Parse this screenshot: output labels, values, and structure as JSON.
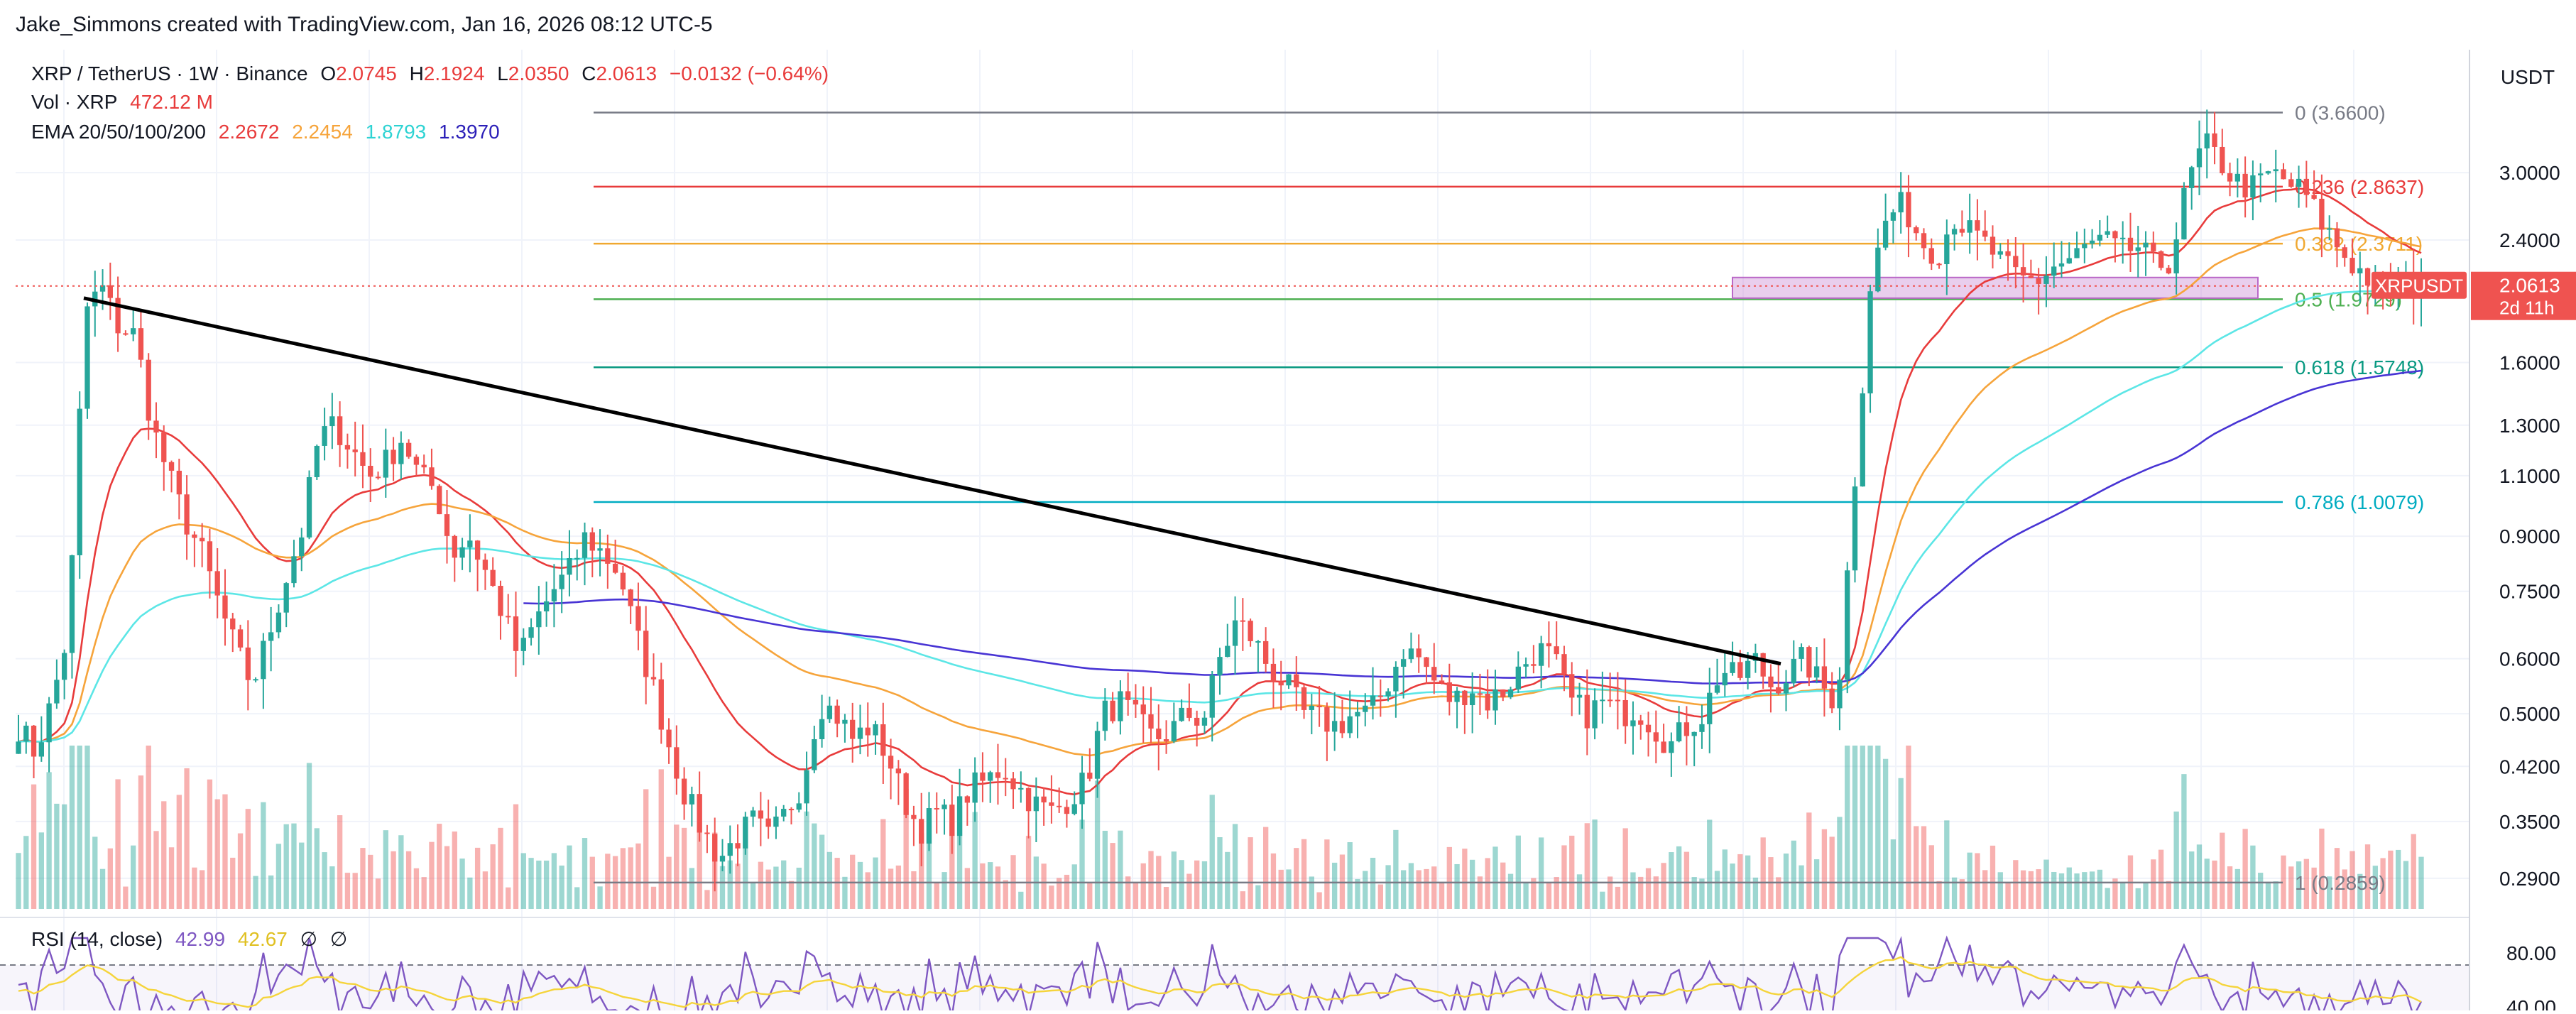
{
  "header": {
    "credit": "Jake_Simmons created with TradingView.com, Jan 16, 2026 08:12 UTC-5",
    "symbol_line": {
      "symbol": "XRP / TetherUS · 1W · Binance",
      "o_label": "O",
      "o": "2.0745",
      "h_label": "H",
      "h": "2.1924",
      "l_label": "L",
      "l": "2.0350",
      "c_label": "C",
      "c": "2.0613",
      "change": "−0.0132 (−0.64%)"
    },
    "volume_line": {
      "label": "Vol · XRP",
      "value": "472.12 M"
    },
    "ema_line": {
      "label": "EMA 20/50/100/200",
      "values": [
        "2.2672",
        "2.2454",
        "1.8793",
        "1.3970"
      ]
    }
  },
  "colors": {
    "up": "#26a69a",
    "down": "#ef5350",
    "ema20": "#e83b3b",
    "ema50": "#f6a43b",
    "ema100": "#5ce6e6",
    "ema200": "#4834d4",
    "rsi": "#7e57c2",
    "rsi_ma": "#f5d43b",
    "trendline": "#000000"
  },
  "price_axis": {
    "currency": "USDT",
    "ticks": [
      "3.0000",
      "2.4000",
      "1.6000",
      "1.3000",
      "1.1000",
      "0.9000",
      "0.7500",
      "0.6000",
      "0.5000",
      "0.4200",
      "0.3500",
      "0.2900"
    ],
    "last_price_tag": {
      "symbol": "XRPUSDT",
      "price": "2.0613",
      "countdown": "2d 11h"
    }
  },
  "rsi_axis": {
    "ticks": [
      "80.00",
      "40.00"
    ]
  },
  "rsi_legend": {
    "label": "RSI (14, close)",
    "rsi": "42.99",
    "ma": "42.67",
    "sym1": "∅",
    "sym2": "∅"
  },
  "chart_data": {
    "type": "candlestick",
    "symbol": "XRP / TetherUS",
    "interval": "1W",
    "exchange": "Binance",
    "y_scale": "log",
    "ylim": [
      0.27,
      3.9
    ],
    "fibonacci": [
      {
        "level": "0",
        "price": 3.66,
        "label": "0 (3.6600)",
        "color": "#787b86"
      },
      {
        "level": "0.236",
        "price": 2.8637,
        "label": "0.236 (2.8637)",
        "color": "#e83b3b"
      },
      {
        "level": "0.382",
        "price": 2.3711,
        "label": "0.382 (2.3711)",
        "color": "#f0a830"
      },
      {
        "level": "0.5",
        "price": 1.9729,
        "label": "0.5 (1.9729)",
        "color": "#4caf50"
      },
      {
        "level": "0.618",
        "price": 1.5748,
        "label": "0.618 (1.5748)",
        "color": "#089981"
      },
      {
        "level": "0.786",
        "price": 1.0079,
        "label": "0.786 (1.0079)",
        "color": "#00acc1"
      },
      {
        "level": "1",
        "price": 0.2859,
        "label": "1 (0.2859)",
        "color": "#787b86"
      }
    ],
    "price_path": [
      0.48,
      0.44,
      0.52,
      0.66,
      1.9,
      2.05,
      1.8,
      1.75,
      1.3,
      1.1,
      0.95,
      0.85,
      0.72,
      0.62,
      0.55,
      0.65,
      0.78,
      0.92,
      1.25,
      1.3,
      1.2,
      1.1,
      1.15,
      1.25,
      1.1,
      1.05,
      0.85,
      0.9,
      0.8,
      0.7,
      0.6,
      0.68,
      0.75,
      0.8,
      0.9,
      0.85,
      0.8,
      0.65,
      0.55,
      0.45,
      0.38,
      0.34,
      0.31,
      0.33,
      0.35,
      0.33,
      0.36,
      0.4,
      0.52,
      0.5,
      0.46,
      0.48,
      0.44,
      0.38,
      0.34,
      0.36,
      0.35,
      0.39,
      0.4,
      0.42,
      0.39,
      0.37,
      0.36,
      0.38,
      0.4,
      0.5,
      0.52,
      0.49,
      0.46,
      0.47,
      0.5,
      0.49,
      0.6,
      0.68,
      0.64,
      0.58,
      0.55,
      0.5,
      0.49,
      0.48,
      0.5,
      0.5,
      0.55,
      0.62,
      0.6,
      0.55,
      0.52,
      0.55,
      0.52,
      0.54,
      0.58,
      0.62,
      0.6,
      0.52,
      0.5,
      0.52,
      0.5,
      0.51,
      0.48,
      0.45,
      0.48,
      0.5,
      0.58,
      0.56,
      0.6,
      0.55,
      0.57,
      0.6,
      0.55,
      0.52,
      1.05,
      2.1,
      2.6,
      2.7,
      2.4,
      2.3,
      2.6,
      2.45,
      2.35,
      2.2,
      2.1,
      2.1,
      2.2,
      2.25,
      2.35,
      2.4,
      2.3,
      2.35,
      2.2,
      2.25,
      2.9,
      3.3,
      3.1,
      2.9,
      2.85,
      3.0,
      2.9,
      2.8,
      2.55,
      2.35,
      2.2,
      2.1,
      2.0,
      2.05,
      2.06
    ],
    "emas": [
      {
        "name": "EMA 20",
        "value": 2.2672,
        "color": "#e83b3b"
      },
      {
        "name": "EMA 50",
        "value": 2.2454,
        "color": "#f6a43b"
      },
      {
        "name": "EMA 100",
        "value": 1.8793,
        "color": "#5ce6e6"
      },
      {
        "name": "EMA 200",
        "value": 1.397,
        "color": "#4834d4"
      }
    ],
    "trendline": {
      "from_price": 1.98,
      "to_price": 0.59
    },
    "rsi": {
      "length": 14,
      "value": 42.99,
      "ma": 42.67,
      "bands": [
        30,
        70
      ]
    }
  }
}
